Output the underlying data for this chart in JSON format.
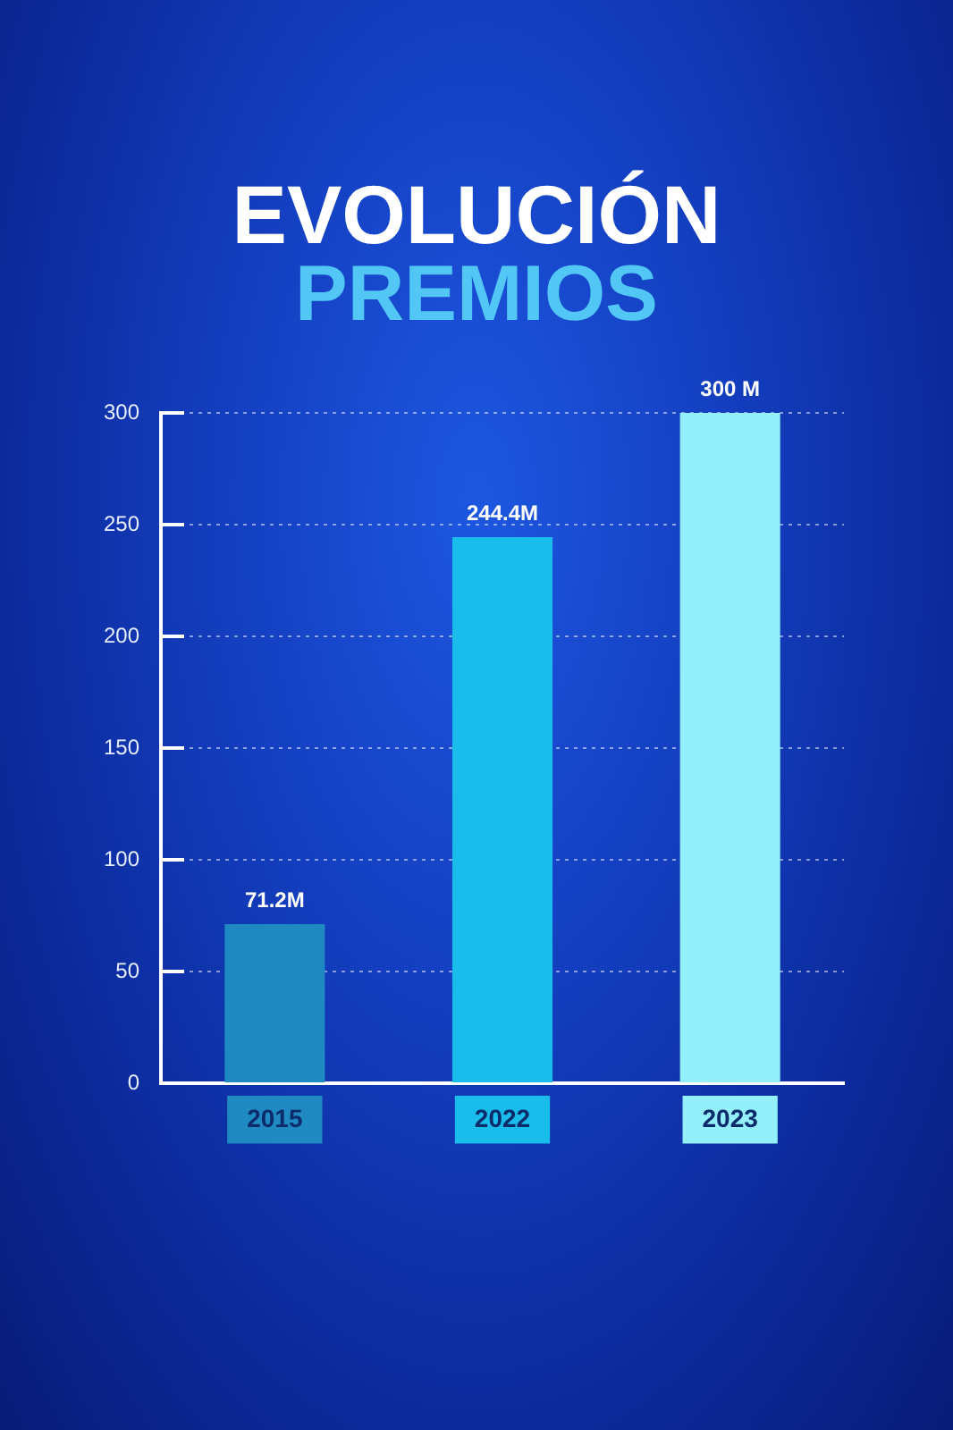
{
  "chart_data": {
    "type": "bar",
    "title": "EVOLUCIÓN",
    "subtitle": "PREMIOS",
    "categories": [
      "2015",
      "2022",
      "2023"
    ],
    "values": [
      71.2,
      244.4,
      300
    ],
    "colors": [
      "#1f8ac2",
      "#19bcea",
      "#93f0fb"
    ],
    "value_labels": [
      "71.2M",
      "244.4M",
      "300 M"
    ],
    "ylim": [
      0,
      300
    ],
    "yticks": [
      0,
      50,
      100,
      150,
      200,
      250,
      300
    ],
    "grid": "y"
  }
}
